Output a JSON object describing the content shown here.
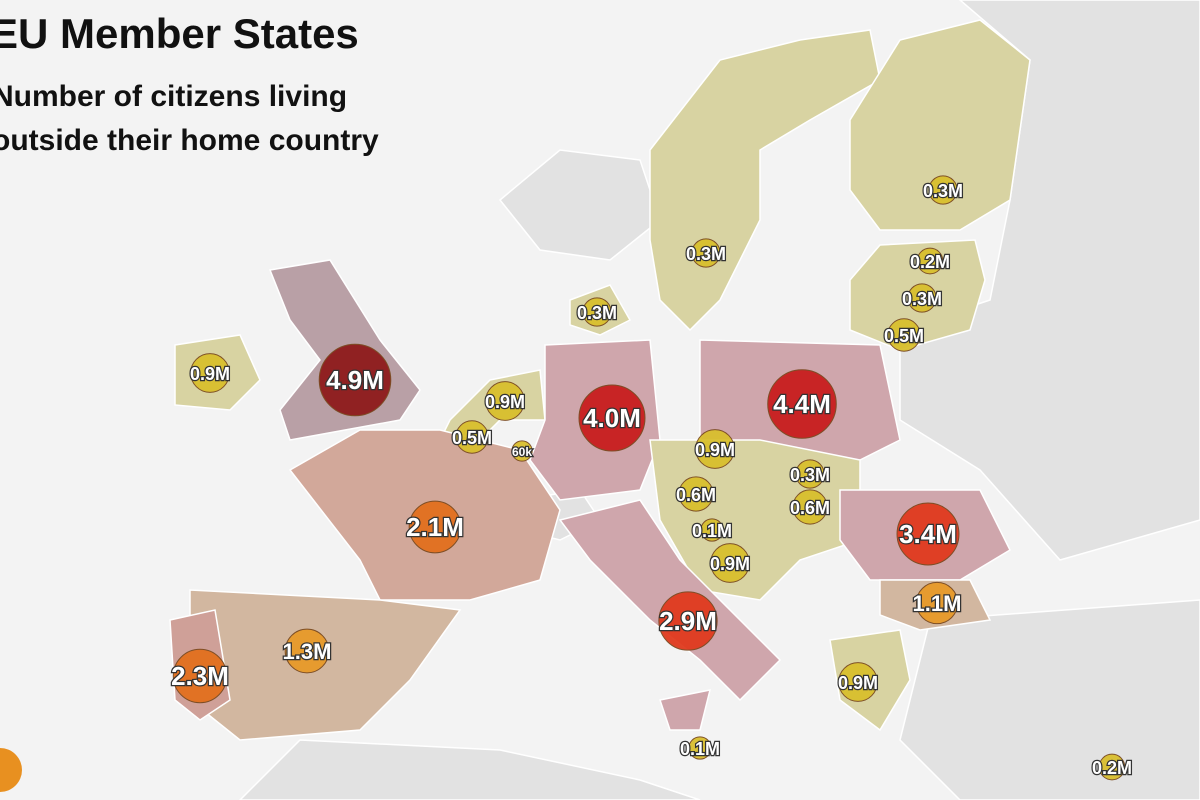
{
  "header": {
    "title": "EU Member States",
    "subtitle_lines": [
      "Number of citizens living",
      "outside their home country"
    ]
  },
  "markers": [
    {
      "label": "4.9M",
      "value": 4.9
    },
    {
      "label": "4.0M",
      "value": 4.0
    },
    {
      "label": "4.4M",
      "value": 4.4
    },
    {
      "label": "3.4M",
      "value": 3.4
    },
    {
      "label": "2.9M",
      "value": 2.9
    },
    {
      "label": "2.1M",
      "value": 2.1
    },
    {
      "label": "2.3M",
      "value": 2.3
    },
    {
      "label": "1.3M",
      "value": 1.3
    },
    {
      "label": "1.1M",
      "value": 1.1
    },
    {
      "label": "0.9M",
      "value": 0.9
    },
    {
      "label": "0.9M",
      "value": 0.9
    },
    {
      "label": "0.5M",
      "value": 0.5
    },
    {
      "label": "60k",
      "value": 0.06
    },
    {
      "label": "0.9M",
      "value": 0.9
    },
    {
      "label": "0.3M",
      "value": 0.3
    },
    {
      "label": "0.6M",
      "value": 0.6
    },
    {
      "label": "0.6M",
      "value": 0.6
    },
    {
      "label": "0.1M",
      "value": 0.1
    },
    {
      "label": "0.9M",
      "value": 0.9
    },
    {
      "label": "0.9M",
      "value": 0.9
    },
    {
      "label": "0.1M",
      "value": 0.1
    },
    {
      "label": "0.2M",
      "value": 0.2
    },
    {
      "label": "0.3M",
      "value": 0.3
    },
    {
      "label": "0.3M",
      "value": 0.3
    },
    {
      "label": "0.3M",
      "value": 0.3
    },
    {
      "label": "0.2M",
      "value": 0.2
    },
    {
      "label": "0.3M",
      "value": 0.3
    },
    {
      "label": "0.5M",
      "value": 0.5
    }
  ]
}
